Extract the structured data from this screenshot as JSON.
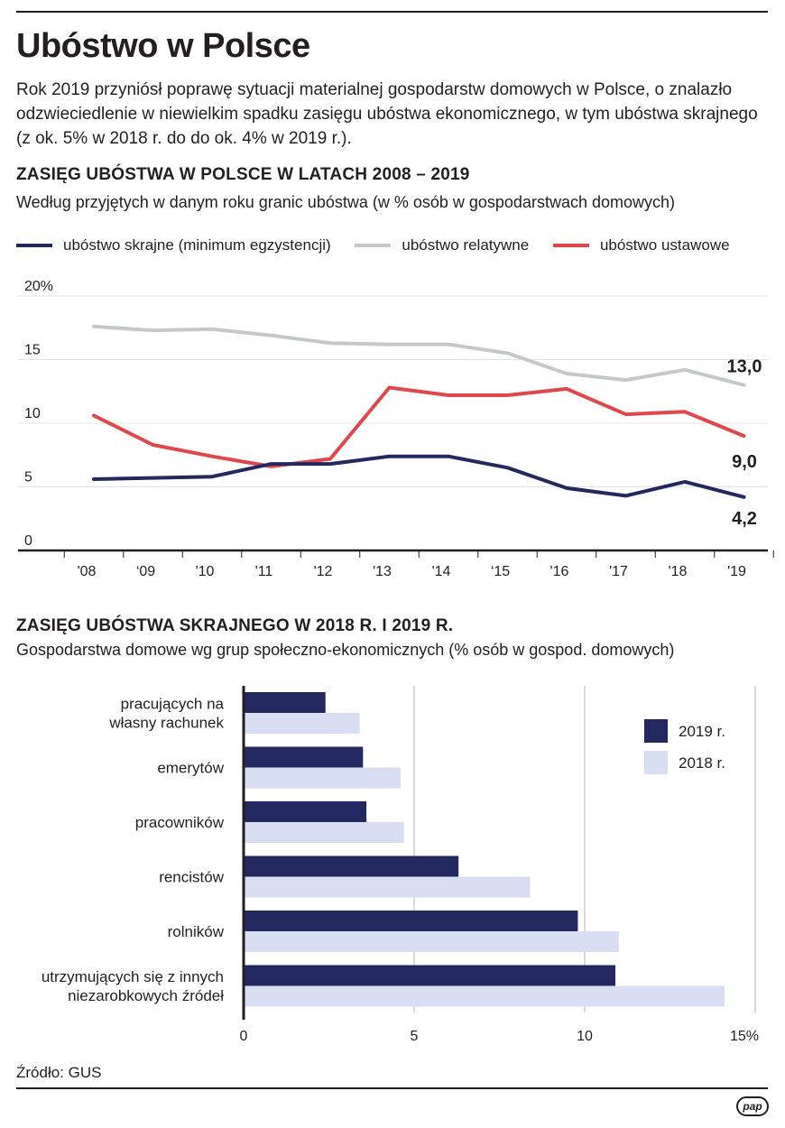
{
  "title": "Ubóstwo w Polsce",
  "intro": "Rok 2019 przyniósł poprawę sytuacji materialnej gospodarstw domowych w Polsce, o znalazło odzwieciedlenie w niewielkim spadku zasięgu ubóstwa ekonomicznego, w tym ubóstwa skrajnego (z ok. 5% w 2018 r. do do ok. 4% w 2019 r.).",
  "source": "Źródło: GUS",
  "logo": "pap",
  "chart_data": [
    {
      "type": "line",
      "title": "ZASIĘG UBÓSTWA W POLSCE W LATACH 2008 – 2019",
      "subtitle": "Według przyjętych w danym roku granic ubóstwa (w % osób w gospodarstwach domowych)",
      "categories": [
        "'08",
        "‘09",
        "'10",
        "'11",
        "'12",
        "'13",
        "'14",
        "‘15",
        "'16",
        "'17",
        "'18",
        "'19"
      ],
      "y_ticks": [
        "0",
        "5",
        "10",
        "15",
        "20%"
      ],
      "ylim": [
        0,
        20
      ],
      "grid": true,
      "legend": "top",
      "series": [
        {
          "name": "ubóstwo skrajne (minimum egzystencji)",
          "color": "#23295e",
          "values": [
            5.6,
            5.7,
            5.8,
            6.8,
            6.8,
            7.4,
            7.4,
            6.5,
            4.9,
            4.3,
            5.4,
            4.2
          ],
          "end_label": "4,2"
        },
        {
          "name": "ubóstwo relatywne",
          "color": "#c5c8c9",
          "values": [
            17.6,
            17.3,
            17.4,
            16.9,
            16.3,
            16.2,
            16.2,
            15.5,
            13.9,
            13.4,
            14.2,
            13.0
          ],
          "end_label": "13,0"
        },
        {
          "name": "ubóstwo ustawowe",
          "color": "#e0474c",
          "values": [
            10.6,
            8.3,
            7.4,
            6.6,
            7.2,
            12.8,
            12.2,
            12.2,
            12.7,
            10.7,
            10.9,
            9.0
          ],
          "end_label": "9,0"
        }
      ]
    },
    {
      "type": "bar",
      "orientation": "horizontal",
      "title": "ZASIĘG UBÓSTWA SKRAJNEGO W 2018 R. I 2019 R.",
      "subtitle": "Gospodarstwa domowe wg grup społeczno-ekonomicznych (% osób w gospod. domowych)",
      "categories": [
        [
          "pracujących na",
          "własny rachunek"
        ],
        [
          "emerytów"
        ],
        [
          "pracowników"
        ],
        [
          "rencistów"
        ],
        [
          "rolników"
        ],
        [
          "utrzymujących się z innych",
          "niezarobkowych źródeł"
        ]
      ],
      "x_ticks": [
        "0",
        "5",
        "10",
        "15%"
      ],
      "xlim": [
        0,
        15
      ],
      "grid": true,
      "legend": "top-right",
      "series": [
        {
          "name": "2019 r.",
          "color": "#23295e",
          "values": [
            2.4,
            3.5,
            3.6,
            6.3,
            9.8,
            10.9
          ]
        },
        {
          "name": "2018 r.",
          "color": "#d9ddf1",
          "values": [
            3.4,
            4.6,
            4.7,
            8.4,
            11.0,
            14.1
          ]
        }
      ]
    }
  ]
}
